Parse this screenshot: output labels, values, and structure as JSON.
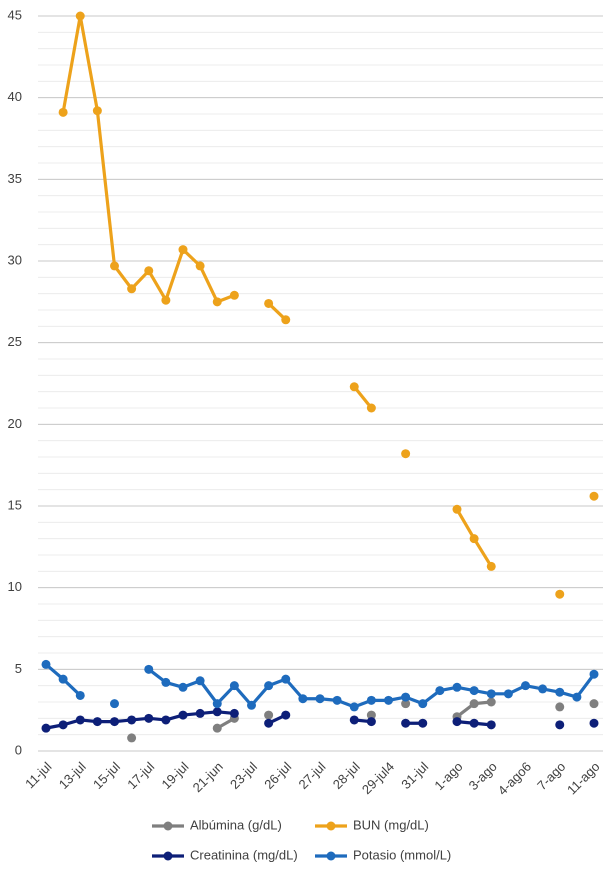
{
  "chart_data": {
    "type": "line",
    "categories": [
      "11-jul",
      null,
      "13-jul",
      null,
      "15-jul",
      null,
      "17-jul",
      null,
      "19-jul",
      null,
      "21-jun",
      null,
      "23-jul",
      null,
      "26-jul",
      null,
      "27-jul",
      null,
      "28-jul",
      null,
      "29-jul4",
      null,
      "31-jul",
      null,
      "1-ago",
      null,
      "3-ago",
      null,
      "4-ago6",
      null,
      "7-ago",
      null,
      "11-ago"
    ],
    "series": [
      {
        "name": "Albúmina (g/dL)",
        "color": "#7f7f7f",
        "values": [
          null,
          null,
          null,
          null,
          null,
          0.8,
          null,
          null,
          null,
          null,
          1.4,
          2.0,
          null,
          2.2,
          null,
          null,
          null,
          null,
          null,
          2.2,
          null,
          2.9,
          null,
          null,
          2.1,
          2.9,
          3.0,
          null,
          null,
          null,
          2.7,
          null,
          2.9
        ]
      },
      {
        "name": "BUN (mg/dL)",
        "color": "#eda21b",
        "values": [
          null,
          39.1,
          45.0,
          39.2,
          29.7,
          28.3,
          29.4,
          27.6,
          30.7,
          29.7,
          27.5,
          27.9,
          null,
          27.4,
          26.4,
          null,
          null,
          null,
          22.3,
          21.0,
          null,
          18.2,
          null,
          null,
          14.8,
          13.0,
          11.3,
          null,
          null,
          null,
          9.6,
          null,
          15.6
        ]
      },
      {
        "name": "Creatinina (mg/dL)",
        "color": "#0d1f78",
        "values": [
          1.4,
          1.6,
          1.9,
          1.8,
          1.8,
          1.9,
          2.0,
          1.9,
          2.2,
          2.3,
          2.4,
          2.3,
          null,
          1.7,
          2.2,
          null,
          null,
          null,
          1.9,
          1.8,
          null,
          1.7,
          1.7,
          null,
          1.8,
          1.7,
          1.6,
          null,
          null,
          null,
          1.6,
          null,
          1.7
        ]
      },
      {
        "name": "Potasio (mmol/L)",
        "color": "#1e6bbd",
        "values": [
          5.3,
          4.4,
          3.4,
          null,
          2.9,
          null,
          5.0,
          4.2,
          3.9,
          4.3,
          2.9,
          4.0,
          2.8,
          4.0,
          4.4,
          3.2,
          3.2,
          3.1,
          2.7,
          3.1,
          3.1,
          3.3,
          2.9,
          3.7,
          3.9,
          3.7,
          3.5,
          3.5,
          4.0,
          3.8,
          3.6,
          3.3,
          4.7
        ]
      }
    ],
    "ylim": [
      0,
      45
    ],
    "yticks": [
      0,
      5,
      10,
      15,
      20,
      25,
      30,
      35,
      40,
      45
    ],
    "grid": true
  }
}
